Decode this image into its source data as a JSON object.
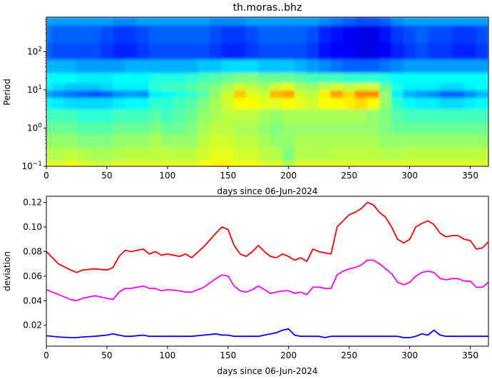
{
  "chart_data": [
    {
      "type": "heatmap",
      "title": "th.moras..bhz",
      "xlabel": "days since 06-Jun-2024",
      "ylabel": "Period",
      "xlim": [
        0,
        365
      ],
      "ylim": [
        0.1,
        800
      ],
      "yscale": "log",
      "colormap": "jet",
      "x_ticks": [
        "0",
        "50",
        "100",
        "150",
        "200",
        "250",
        "300",
        "350"
      ],
      "x_tick_values": [
        0,
        50,
        100,
        150,
        200,
        250,
        300,
        350
      ],
      "y_ticks": [
        {
          "value": 0.1,
          "base": "10",
          "exp": "−1"
        },
        {
          "value": 1,
          "base": "10",
          "exp": "0"
        },
        {
          "value": 10,
          "base": "10",
          "exp": "1"
        },
        {
          "value": 100,
          "base": "10",
          "exp": "2"
        }
      ],
      "time_columns": [
        0,
        10,
        20,
        30,
        40,
        50,
        60,
        70,
        80,
        90,
        100,
        110,
        120,
        130,
        140,
        150,
        160,
        170,
        180,
        190,
        200,
        210,
        220,
        230,
        240,
        250,
        260,
        270,
        280,
        290,
        300,
        310,
        320,
        330,
        340,
        350,
        360
      ],
      "period_rows": [
        0.1,
        0.2,
        0.5,
        1,
        2,
        5,
        8,
        12,
        20,
        40,
        100,
        300,
        800
      ],
      "intensity": [
        [
          0.6,
          0.6,
          0.62,
          0.6,
          0.58,
          0.58,
          0.6,
          0.6,
          0.6,
          0.6,
          0.6,
          0.6,
          0.6,
          0.62,
          0.64,
          0.64,
          0.62,
          0.62,
          0.6,
          0.6,
          0.55,
          0.6,
          0.6,
          0.6,
          0.6,
          0.6,
          0.6,
          0.6,
          0.6,
          0.6,
          0.6,
          0.6,
          0.6,
          0.6,
          0.6,
          0.6,
          0.6
        ],
        [
          0.55,
          0.55,
          0.56,
          0.55,
          0.54,
          0.54,
          0.55,
          0.56,
          0.56,
          0.56,
          0.56,
          0.56,
          0.56,
          0.58,
          0.6,
          0.6,
          0.58,
          0.58,
          0.56,
          0.55,
          0.5,
          0.55,
          0.55,
          0.55,
          0.56,
          0.56,
          0.56,
          0.56,
          0.55,
          0.55,
          0.56,
          0.56,
          0.56,
          0.56,
          0.56,
          0.56,
          0.56
        ],
        [
          0.52,
          0.52,
          0.52,
          0.5,
          0.5,
          0.5,
          0.52,
          0.52,
          0.52,
          0.54,
          0.52,
          0.52,
          0.52,
          0.56,
          0.58,
          0.58,
          0.56,
          0.56,
          0.54,
          0.52,
          0.52,
          0.54,
          0.54,
          0.54,
          0.54,
          0.54,
          0.54,
          0.54,
          0.52,
          0.52,
          0.52,
          0.52,
          0.52,
          0.52,
          0.52,
          0.52,
          0.52
        ],
        [
          0.48,
          0.48,
          0.48,
          0.46,
          0.46,
          0.46,
          0.48,
          0.48,
          0.48,
          0.5,
          0.48,
          0.48,
          0.5,
          0.54,
          0.56,
          0.56,
          0.54,
          0.54,
          0.52,
          0.5,
          0.52,
          0.52,
          0.52,
          0.52,
          0.52,
          0.52,
          0.52,
          0.52,
          0.5,
          0.48,
          0.48,
          0.48,
          0.48,
          0.48,
          0.48,
          0.48,
          0.48
        ],
        [
          0.44,
          0.44,
          0.44,
          0.42,
          0.42,
          0.42,
          0.44,
          0.44,
          0.44,
          0.46,
          0.44,
          0.46,
          0.48,
          0.52,
          0.54,
          0.56,
          0.56,
          0.56,
          0.54,
          0.52,
          0.54,
          0.54,
          0.54,
          0.54,
          0.54,
          0.54,
          0.54,
          0.52,
          0.5,
          0.46,
          0.44,
          0.44,
          0.44,
          0.44,
          0.44,
          0.44,
          0.44
        ],
        [
          0.38,
          0.36,
          0.34,
          0.34,
          0.34,
          0.34,
          0.36,
          0.38,
          0.38,
          0.42,
          0.42,
          0.44,
          0.46,
          0.5,
          0.54,
          0.58,
          0.62,
          0.62,
          0.6,
          0.6,
          0.62,
          0.6,
          0.58,
          0.62,
          0.62,
          0.64,
          0.66,
          0.62,
          0.52,
          0.42,
          0.38,
          0.36,
          0.36,
          0.34,
          0.34,
          0.36,
          0.38
        ],
        [
          0.28,
          0.26,
          0.24,
          0.22,
          0.2,
          0.22,
          0.26,
          0.28,
          0.26,
          0.36,
          0.38,
          0.4,
          0.42,
          0.46,
          0.52,
          0.58,
          0.68,
          0.6,
          0.58,
          0.7,
          0.72,
          0.58,
          0.56,
          0.64,
          0.72,
          0.66,
          0.74,
          0.74,
          0.52,
          0.36,
          0.3,
          0.28,
          0.26,
          0.22,
          0.22,
          0.26,
          0.3
        ],
        [
          0.36,
          0.34,
          0.32,
          0.32,
          0.32,
          0.34,
          0.36,
          0.36,
          0.36,
          0.42,
          0.44,
          0.44,
          0.46,
          0.48,
          0.5,
          0.54,
          0.58,
          0.56,
          0.54,
          0.58,
          0.6,
          0.54,
          0.52,
          0.56,
          0.58,
          0.56,
          0.58,
          0.58,
          0.48,
          0.4,
          0.36,
          0.36,
          0.36,
          0.34,
          0.34,
          0.36,
          0.38
        ],
        [
          0.38,
          0.38,
          0.38,
          0.36,
          0.36,
          0.36,
          0.38,
          0.38,
          0.38,
          0.4,
          0.4,
          0.4,
          0.42,
          0.44,
          0.46,
          0.48,
          0.5,
          0.5,
          0.48,
          0.48,
          0.48,
          0.46,
          0.44,
          0.44,
          0.44,
          0.42,
          0.42,
          0.42,
          0.4,
          0.38,
          0.38,
          0.38,
          0.38,
          0.38,
          0.38,
          0.38,
          0.38
        ],
        [
          0.3,
          0.3,
          0.3,
          0.28,
          0.28,
          0.28,
          0.28,
          0.3,
          0.3,
          0.3,
          0.3,
          0.3,
          0.3,
          0.32,
          0.32,
          0.34,
          0.34,
          0.34,
          0.32,
          0.32,
          0.32,
          0.3,
          0.28,
          0.26,
          0.24,
          0.22,
          0.22,
          0.22,
          0.24,
          0.26,
          0.28,
          0.28,
          0.28,
          0.28,
          0.28,
          0.28,
          0.28
        ],
        [
          0.22,
          0.2,
          0.2,
          0.2,
          0.2,
          0.18,
          0.16,
          0.16,
          0.18,
          0.2,
          0.2,
          0.2,
          0.2,
          0.2,
          0.18,
          0.16,
          0.16,
          0.18,
          0.2,
          0.2,
          0.2,
          0.2,
          0.18,
          0.14,
          0.12,
          0.12,
          0.1,
          0.1,
          0.12,
          0.16,
          0.18,
          0.2,
          0.18,
          0.18,
          0.16,
          0.16,
          0.18
        ],
        [
          0.24,
          0.22,
          0.22,
          0.22,
          0.22,
          0.2,
          0.18,
          0.18,
          0.2,
          0.22,
          0.22,
          0.22,
          0.22,
          0.22,
          0.2,
          0.18,
          0.18,
          0.2,
          0.22,
          0.22,
          0.22,
          0.22,
          0.2,
          0.16,
          0.14,
          0.12,
          0.1,
          0.1,
          0.14,
          0.18,
          0.2,
          0.22,
          0.2,
          0.2,
          0.18,
          0.18,
          0.2
        ],
        [
          0.28,
          0.28,
          0.28,
          0.28,
          0.28,
          0.28,
          0.26,
          0.26,
          0.28,
          0.28,
          0.28,
          0.28,
          0.28,
          0.28,
          0.26,
          0.26,
          0.26,
          0.28,
          0.28,
          0.28,
          0.28,
          0.28,
          0.28,
          0.26,
          0.24,
          0.22,
          0.2,
          0.2,
          0.22,
          0.26,
          0.28,
          0.28,
          0.28,
          0.28,
          0.28,
          0.28,
          0.28
        ]
      ]
    },
    {
      "type": "line",
      "xlabel": "days since 06-Jun-2024",
      "ylabel": "deviation",
      "xlim": [
        0,
        365
      ],
      "ylim": [
        0.003,
        0.125
      ],
      "x_ticks": [
        "0",
        "50",
        "100",
        "150",
        "200",
        "250",
        "300",
        "350"
      ],
      "x_tick_values": [
        0,
        50,
        100,
        150,
        200,
        250,
        300,
        350
      ],
      "y_ticks": [
        "0.02",
        "0.04",
        "0.06",
        "0.08",
        "0.10",
        "0.12"
      ],
      "y_tick_values": [
        0.02,
        0.04,
        0.06,
        0.08,
        0.1,
        0.12
      ],
      "x": [
        0,
        10,
        20,
        25,
        30,
        40,
        50,
        55,
        60,
        65,
        70,
        80,
        85,
        90,
        95,
        100,
        110,
        115,
        120,
        130,
        140,
        145,
        150,
        155,
        160,
        165,
        170,
        175,
        180,
        185,
        190,
        195,
        200,
        205,
        210,
        215,
        220,
        225,
        230,
        235,
        240,
        245,
        250,
        255,
        260,
        265,
        270,
        275,
        280,
        285,
        290,
        295,
        300,
        305,
        310,
        315,
        320,
        325,
        330,
        335,
        340,
        345,
        350,
        355,
        360,
        365
      ],
      "series": [
        {
          "color": "#ff0000",
          "values": [
            0.08,
            0.07,
            0.065,
            0.063,
            0.065,
            0.066,
            0.065,
            0.067,
            0.076,
            0.081,
            0.08,
            0.082,
            0.078,
            0.08,
            0.077,
            0.078,
            0.076,
            0.078,
            0.075,
            0.084,
            0.095,
            0.1,
            0.098,
            0.085,
            0.078,
            0.076,
            0.08,
            0.085,
            0.08,
            0.076,
            0.075,
            0.078,
            0.076,
            0.073,
            0.075,
            0.072,
            0.082,
            0.08,
            0.079,
            0.078,
            0.1,
            0.105,
            0.11,
            0.112,
            0.115,
            0.12,
            0.118,
            0.112,
            0.108,
            0.1,
            0.09,
            0.087,
            0.09,
            0.1,
            0.103,
            0.105,
            0.102,
            0.095,
            0.092,
            0.093,
            0.093,
            0.09,
            0.089,
            0.082,
            0.083,
            0.088
          ]
        },
        {
          "color": "#ff00ff",
          "values": [
            0.049,
            0.045,
            0.041,
            0.04,
            0.042,
            0.044,
            0.042,
            0.041,
            0.047,
            0.05,
            0.05,
            0.052,
            0.05,
            0.05,
            0.048,
            0.049,
            0.048,
            0.047,
            0.047,
            0.051,
            0.058,
            0.061,
            0.06,
            0.052,
            0.048,
            0.047,
            0.049,
            0.052,
            0.049,
            0.046,
            0.047,
            0.048,
            0.048,
            0.046,
            0.047,
            0.045,
            0.051,
            0.051,
            0.05,
            0.05,
            0.061,
            0.064,
            0.066,
            0.067,
            0.069,
            0.073,
            0.073,
            0.07,
            0.066,
            0.062,
            0.055,
            0.053,
            0.055,
            0.06,
            0.063,
            0.064,
            0.063,
            0.058,
            0.057,
            0.058,
            0.058,
            0.056,
            0.056,
            0.051,
            0.051,
            0.055
          ]
        },
        {
          "color": "#0000ff",
          "values": [
            0.0115,
            0.0105,
            0.01,
            0.01,
            0.0105,
            0.011,
            0.012,
            0.013,
            0.012,
            0.011,
            0.011,
            0.012,
            0.011,
            0.011,
            0.011,
            0.011,
            0.011,
            0.011,
            0.011,
            0.012,
            0.013,
            0.012,
            0.012,
            0.011,
            0.011,
            0.011,
            0.011,
            0.011,
            0.012,
            0.013,
            0.014,
            0.016,
            0.017,
            0.012,
            0.011,
            0.011,
            0.011,
            0.011,
            0.01,
            0.011,
            0.011,
            0.011,
            0.011,
            0.011,
            0.011,
            0.011,
            0.011,
            0.011,
            0.011,
            0.011,
            0.011,
            0.01,
            0.01,
            0.011,
            0.013,
            0.012,
            0.016,
            0.012,
            0.011,
            0.011,
            0.011,
            0.011,
            0.011,
            0.011,
            0.011,
            0.011
          ]
        }
      ]
    }
  ]
}
